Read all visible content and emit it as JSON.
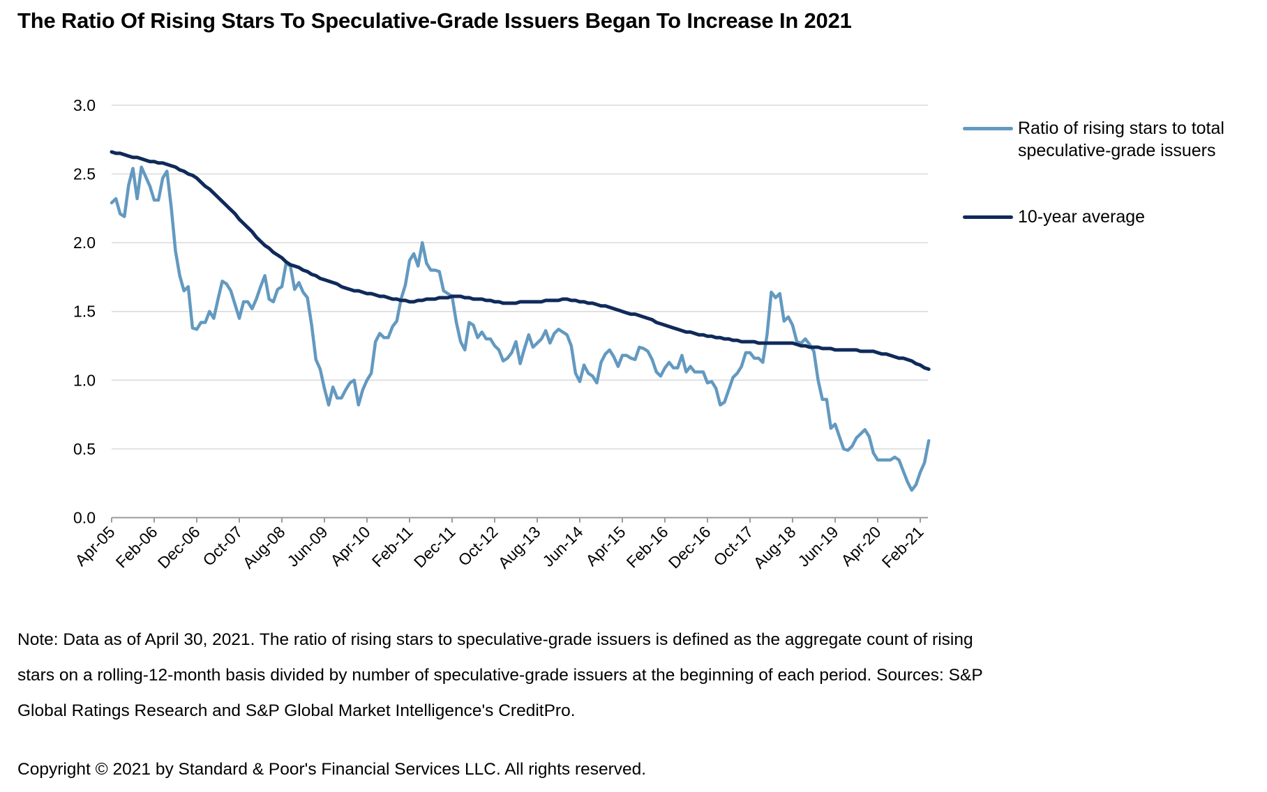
{
  "title": "The Ratio Of Rising Stars To Speculative-Grade Issuers Began To Increase In 2021",
  "note": "Note: Data as of April 30, 2021. The ratio of rising stars to speculative-grade issuers is defined as the aggregate count of rising stars on a rolling-12-month basis divided by number of speculative-grade issuers at the beginning of each period. Sources: S&P Global Ratings Research and S&P Global Market Intelligence's CreditPro.",
  "copyright": "Copyright © 2021 by Standard & Poor's Financial Services LLC. All rights reserved.",
  "colors": {
    "ratio": "#6399c0",
    "average": "#0f2a5a",
    "grid": "#d9d9d9",
    "axis": "#9a9a9a"
  },
  "chart_data": {
    "type": "line",
    "title": "The Ratio Of Rising Stars To Speculative-Grade Issuers Began To Increase In 2021",
    "xlabel": "",
    "ylabel": "",
    "x_start": "Apr-05",
    "x_end": "Apr-21",
    "x_frequency": "monthly",
    "ylim": [
      0,
      3.0
    ],
    "yticks": [
      "0.0",
      "0.5",
      "1.0",
      "1.5",
      "2.0",
      "2.5",
      "3.0"
    ],
    "ytick_values": [
      0,
      0.5,
      1.0,
      1.5,
      2.0,
      2.5,
      3.0
    ],
    "xtick_labels": [
      "Apr-05",
      "Feb-06",
      "Dec-06",
      "Oct-07",
      "Aug-08",
      "Jun-09",
      "Apr-10",
      "Feb-11",
      "Dec-11",
      "Oct-12",
      "Aug-13",
      "Jun-14",
      "Apr-15",
      "Feb-16",
      "Dec-16",
      "Oct-17",
      "Aug-18",
      "Jun-19",
      "Apr-20",
      "Feb-21"
    ],
    "xtick_interval_months": 10,
    "grid": true,
    "legend_position": "right",
    "series": [
      {
        "name": "Ratio of rising stars to total speculative-grade issuers",
        "color": "#6399c0",
        "values": [
          2.29,
          2.32,
          2.21,
          2.19,
          2.42,
          2.54,
          2.32,
          2.55,
          2.48,
          2.41,
          2.31,
          2.31,
          2.47,
          2.52,
          2.26,
          1.94,
          1.76,
          1.65,
          1.68,
          1.38,
          1.37,
          1.42,
          1.42,
          1.5,
          1.45,
          1.59,
          1.72,
          1.7,
          1.65,
          1.55,
          1.45,
          1.57,
          1.57,
          1.52,
          1.59,
          1.68,
          1.76,
          1.59,
          1.57,
          1.66,
          1.68,
          1.85,
          1.83,
          1.66,
          1.71,
          1.64,
          1.6,
          1.4,
          1.15,
          1.08,
          0.94,
          0.82,
          0.95,
          0.87,
          0.87,
          0.93,
          0.98,
          1.0,
          0.82,
          0.93,
          1.0,
          1.05,
          1.28,
          1.34,
          1.31,
          1.31,
          1.39,
          1.43,
          1.59,
          1.69,
          1.87,
          1.92,
          1.83,
          2.0,
          1.85,
          1.8,
          1.8,
          1.79,
          1.65,
          1.63,
          1.61,
          1.42,
          1.28,
          1.22,
          1.42,
          1.4,
          1.31,
          1.35,
          1.3,
          1.3,
          1.25,
          1.22,
          1.14,
          1.16,
          1.2,
          1.28,
          1.12,
          1.23,
          1.33,
          1.24,
          1.27,
          1.3,
          1.36,
          1.27,
          1.34,
          1.37,
          1.35,
          1.33,
          1.25,
          1.05,
          0.99,
          1.11,
          1.05,
          1.03,
          0.98,
          1.13,
          1.19,
          1.22,
          1.17,
          1.1,
          1.18,
          1.18,
          1.16,
          1.15,
          1.24,
          1.23,
          1.21,
          1.15,
          1.06,
          1.03,
          1.09,
          1.13,
          1.09,
          1.09,
          1.18,
          1.06,
          1.1,
          1.06,
          1.06,
          1.06,
          0.98,
          0.99,
          0.94,
          0.82,
          0.84,
          0.93,
          1.02,
          1.05,
          1.1,
          1.2,
          1.2,
          1.16,
          1.16,
          1.13,
          1.33,
          1.64,
          1.6,
          1.63,
          1.43,
          1.46,
          1.4,
          1.28,
          1.27,
          1.3,
          1.26,
          1.21,
          1.0,
          0.86,
          0.86,
          0.65,
          0.68,
          0.59,
          0.5,
          0.49,
          0.52,
          0.58,
          0.61,
          0.64,
          0.59,
          0.47,
          0.42,
          0.42,
          0.42,
          0.42,
          0.44,
          0.42,
          0.34,
          0.26,
          0.2,
          0.24,
          0.33,
          0.4,
          0.56
        ]
      },
      {
        "name": "10-year average",
        "color": "#0f2a5a",
        "values": [
          2.66,
          2.65,
          2.65,
          2.64,
          2.63,
          2.62,
          2.62,
          2.61,
          2.6,
          2.59,
          2.59,
          2.58,
          2.58,
          2.57,
          2.56,
          2.55,
          2.53,
          2.52,
          2.5,
          2.49,
          2.47,
          2.44,
          2.41,
          2.39,
          2.36,
          2.33,
          2.3,
          2.27,
          2.24,
          2.21,
          2.17,
          2.14,
          2.11,
          2.08,
          2.04,
          2.01,
          1.98,
          1.96,
          1.93,
          1.91,
          1.89,
          1.86,
          1.84,
          1.83,
          1.82,
          1.8,
          1.79,
          1.77,
          1.76,
          1.74,
          1.73,
          1.72,
          1.71,
          1.7,
          1.68,
          1.67,
          1.66,
          1.65,
          1.65,
          1.64,
          1.63,
          1.63,
          1.62,
          1.61,
          1.61,
          1.6,
          1.59,
          1.59,
          1.58,
          1.58,
          1.57,
          1.57,
          1.58,
          1.58,
          1.59,
          1.59,
          1.59,
          1.6,
          1.6,
          1.6,
          1.61,
          1.61,
          1.61,
          1.6,
          1.6,
          1.59,
          1.59,
          1.59,
          1.58,
          1.58,
          1.57,
          1.57,
          1.56,
          1.56,
          1.56,
          1.56,
          1.57,
          1.57,
          1.57,
          1.57,
          1.57,
          1.57,
          1.58,
          1.58,
          1.58,
          1.58,
          1.59,
          1.59,
          1.58,
          1.58,
          1.57,
          1.57,
          1.56,
          1.56,
          1.55,
          1.54,
          1.54,
          1.53,
          1.52,
          1.51,
          1.5,
          1.49,
          1.48,
          1.48,
          1.47,
          1.46,
          1.45,
          1.44,
          1.42,
          1.41,
          1.4,
          1.39,
          1.38,
          1.37,
          1.36,
          1.35,
          1.35,
          1.34,
          1.33,
          1.33,
          1.32,
          1.32,
          1.31,
          1.31,
          1.3,
          1.3,
          1.29,
          1.29,
          1.28,
          1.28,
          1.28,
          1.28,
          1.27,
          1.27,
          1.27,
          1.27,
          1.27,
          1.27,
          1.27,
          1.27,
          1.27,
          1.26,
          1.25,
          1.25,
          1.24,
          1.24,
          1.24,
          1.23,
          1.23,
          1.23,
          1.22,
          1.22,
          1.22,
          1.22,
          1.22,
          1.22,
          1.21,
          1.21,
          1.21,
          1.21,
          1.2,
          1.19,
          1.19,
          1.18,
          1.17,
          1.16,
          1.16,
          1.15,
          1.14,
          1.12,
          1.11,
          1.09,
          1.08
        ]
      }
    ]
  }
}
